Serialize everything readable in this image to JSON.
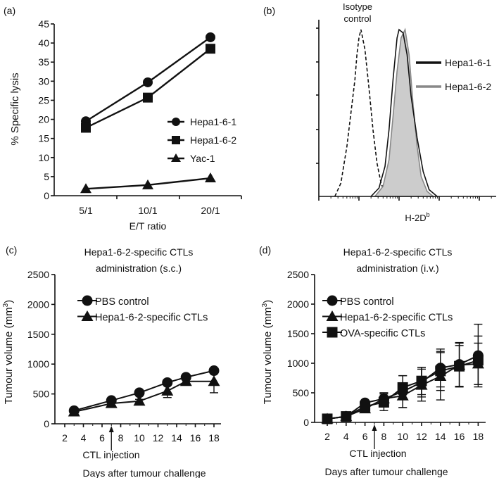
{
  "chart_data": [
    {
      "panel": "(a)",
      "type": "line",
      "xlabel": "E/T ratio",
      "ylabel": "% Specific lysis",
      "categories": [
        "5/1",
        "10/1",
        "20/1"
      ],
      "ylim": [
        0,
        45
      ],
      "yticks": [
        0,
        5,
        10,
        15,
        20,
        25,
        30,
        35,
        40,
        45
      ],
      "grid": false,
      "legend_placement": "right",
      "series": [
        {
          "name": "Hepa1-6-1",
          "marker": "circle",
          "values": [
            19.5,
            29.7,
            41.5
          ]
        },
        {
          "name": "Hepa1-6-2",
          "marker": "square",
          "values": [
            17.8,
            25.7,
            38.5
          ]
        },
        {
          "name": "Yac-1",
          "marker": "triangle",
          "values": [
            1.8,
            2.8,
            4.6
          ]
        }
      ]
    },
    {
      "panel": "(b)",
      "type": "area",
      "xlabel": "H-2D",
      "xlabel_superscript": "b",
      "xscale": "log",
      "annotation": [
        "Isotype",
        "control"
      ],
      "legend_placement": "right",
      "series": [
        {
          "name": "Isotype control",
          "style": "dashed",
          "color": "#111111",
          "points": [
            [
              0.4,
              0
            ],
            [
              0.55,
              8
            ],
            [
              0.7,
              30
            ],
            [
              0.8,
              50
            ],
            [
              0.9,
              70
            ],
            [
              0.95,
              85
            ],
            [
              1.0,
              95
            ],
            [
              1.05,
              100
            ],
            [
              1.15,
              88
            ],
            [
              1.25,
              65
            ],
            [
              1.35,
              40
            ],
            [
              1.45,
              20
            ],
            [
              1.55,
              8
            ],
            [
              1.65,
              2
            ],
            [
              1.8,
              0
            ]
          ]
        },
        {
          "name": "Hepa1-6-2",
          "style": "filled",
          "color": "#888888",
          "fill": "#cccccc",
          "points": [
            [
              1.4,
              0
            ],
            [
              1.6,
              6
            ],
            [
              1.75,
              22
            ],
            [
              1.85,
              48
            ],
            [
              1.95,
              75
            ],
            [
              2.05,
              95
            ],
            [
              2.15,
              100
            ],
            [
              2.25,
              85
            ],
            [
              2.35,
              55
            ],
            [
              2.45,
              30
            ],
            [
              2.55,
              12
            ],
            [
              2.7,
              3
            ],
            [
              2.85,
              0
            ]
          ]
        },
        {
          "name": "Hepa1-6-1",
          "style": "solid",
          "color": "#111111",
          "points": [
            [
              1.3,
              0
            ],
            [
              1.5,
              5
            ],
            [
              1.65,
              18
            ],
            [
              1.75,
              40
            ],
            [
              1.85,
              70
            ],
            [
              1.95,
              95
            ],
            [
              2.0,
              100
            ],
            [
              2.1,
              98
            ],
            [
              2.2,
              85
            ],
            [
              2.3,
              60
            ],
            [
              2.45,
              35
            ],
            [
              2.6,
              15
            ],
            [
              2.75,
              4
            ],
            [
              2.95,
              0
            ]
          ]
        }
      ]
    },
    {
      "panel": "(c)",
      "type": "line",
      "title": [
        "Hepa1-6-2-specific CTLs",
        "administration (s.c.)"
      ],
      "xlabel": "Days after tumour challenge",
      "ylabel": "Tumour volume (mm",
      "ylabel_superscript": "3",
      "ylabel_suffix": ")",
      "xticks": [
        2,
        4,
        6,
        8,
        10,
        12,
        14,
        16,
        18
      ],
      "yticks": [
        0,
        500,
        1000,
        1500,
        2000,
        2500
      ],
      "ylim": [
        0,
        2500
      ],
      "annotation": {
        "label": "CTL injection",
        "day": 7
      },
      "legend_placement": "top-left",
      "series": [
        {
          "name": "PBS control",
          "marker": "circle",
          "x": [
            3,
            7,
            10,
            13,
            15,
            18
          ],
          "values": [
            220,
            390,
            520,
            690,
            780,
            890
          ],
          "errors": [
            20,
            30,
            40,
            40,
            40,
            40
          ]
        },
        {
          "name": "Hepa1-6-2-specific CTLs",
          "marker": "triangle",
          "x": [
            3,
            7,
            10,
            13,
            15,
            18
          ],
          "values": [
            200,
            340,
            380,
            550,
            710,
            710
          ],
          "errors": [
            20,
            30,
            30,
            110,
            40,
            190
          ]
        }
      ]
    },
    {
      "panel": "(d)",
      "type": "line",
      "title": [
        "Hepa1-6-2-specific CTLs",
        "administration (i.v.)"
      ],
      "xlabel": "Days after tumour challenge",
      "ylabel": "Tumour volume (mm",
      "ylabel_superscript": "3",
      "ylabel_suffix": ")",
      "xticks": [
        2,
        4,
        6,
        8,
        10,
        12,
        14,
        16,
        18
      ],
      "yticks": [
        0,
        500,
        1000,
        1500,
        2000,
        2500
      ],
      "ylim": [
        0,
        2500
      ],
      "annotation": {
        "label": "CTL injection",
        "day": 7
      },
      "legend_placement": "top-left",
      "series": [
        {
          "name": "PBS control",
          "marker": "circle",
          "x": [
            2,
            4,
            6,
            8,
            10,
            12,
            14,
            16,
            18
          ],
          "values": [
            60,
            100,
            330,
            400,
            520,
            680,
            920,
            980,
            1130
          ],
          "errors": [
            10,
            20,
            40,
            100,
            270,
            250,
            320,
            370,
            530
          ]
        },
        {
          "name": "Hepa1-6-2-specific CTLs",
          "marker": "triangle",
          "x": [
            2,
            4,
            6,
            8,
            10,
            12,
            14,
            16,
            18
          ],
          "values": [
            60,
            100,
            230,
            400,
            450,
            630,
            780,
            970,
            990
          ],
          "errors": [
            10,
            20,
            40,
            100,
            200,
            270,
            400,
            370,
            350
          ]
        },
        {
          "name": "OVA-specific CTLs",
          "marker": "square",
          "x": [
            2,
            4,
            6,
            8,
            10,
            12,
            14,
            16,
            18
          ],
          "values": [
            60,
            100,
            270,
            340,
            590,
            700,
            870,
            950,
            1050
          ],
          "errors": [
            10,
            20,
            40,
            140,
            200,
            230,
            330,
            350,
            410
          ]
        }
      ]
    }
  ]
}
